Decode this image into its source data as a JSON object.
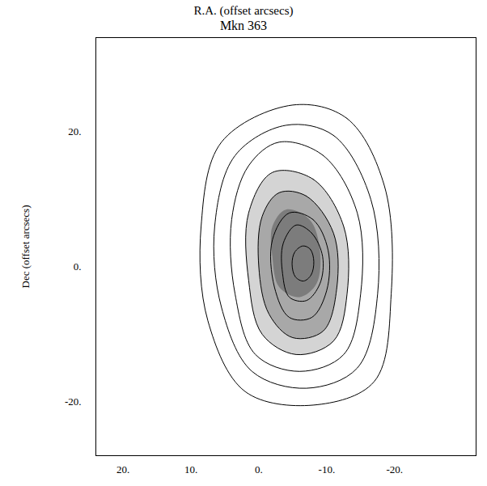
{
  "chart_data": {
    "type": "contour",
    "title": "Mkn 363",
    "x_label": "R.A. (offset arcsecs)",
    "y_label": "Dec (offset arcsecs)",
    "xlim": [
      24,
      -32
    ],
    "ylim": [
      -28,
      34
    ],
    "xticks": [
      {
        "value": 20,
        "label": "20."
      },
      {
        "value": 10,
        "label": "10."
      },
      {
        "value": 0,
        "label": "0."
      },
      {
        "value": -10,
        "label": "-10."
      },
      {
        "value": -20,
        "label": "-20."
      }
    ],
    "yticks": [
      {
        "value": 20,
        "label": "20."
      },
      {
        "value": 0,
        "label": "0."
      },
      {
        "value": -20,
        "label": "-20."
      }
    ],
    "color": "#000000",
    "shading": [
      {
        "color": "#d4d4d4",
        "points": [
          [
            -2.0,
            14.0
          ],
          [
            -8.0,
            13.0
          ],
          [
            -12.5,
            6.0
          ],
          [
            -13.0,
            -4.0
          ],
          [
            -11.0,
            -11.0
          ],
          [
            -5.5,
            -13.0
          ],
          [
            -0.5,
            -10.0
          ],
          [
            1.5,
            -2.0
          ],
          [
            1.5,
            8.0
          ]
        ]
      },
      {
        "color": "#a8a8a8",
        "points": [
          [
            -3.0,
            11.0
          ],
          [
            -7.0,
            10.5
          ],
          [
            -11.0,
            5.0
          ],
          [
            -11.5,
            -3.0
          ],
          [
            -9.5,
            -9.5
          ],
          [
            -5.0,
            -10.5
          ],
          [
            -1.5,
            -7.0
          ],
          [
            0.0,
            0.0
          ],
          [
            -0.5,
            7.5
          ]
        ]
      },
      {
        "color": "#7c7c7c",
        "points": [
          [
            -4.0,
            8.5
          ],
          [
            -7.5,
            7.0
          ],
          [
            -9.0,
            2.5
          ],
          [
            -8.5,
            -2.5
          ],
          [
            -6.0,
            -4.5
          ],
          [
            -3.0,
            -3.0
          ],
          [
            -2.0,
            1.5
          ],
          [
            -2.0,
            6.0
          ]
        ]
      }
    ],
    "contours": [
      [
        [
          -6.5,
          3.1
        ],
        [
          -7.6,
          2.6
        ],
        [
          -8.1,
          0.8
        ],
        [
          -7.7,
          -1.2
        ],
        [
          -6.6,
          -2.1
        ],
        [
          -5.4,
          -1.5
        ],
        [
          -4.9,
          0.4
        ],
        [
          -5.3,
          2.2
        ]
      ],
      [
        [
          -5.5,
          6.2
        ],
        [
          -7.8,
          5.0
        ],
        [
          -9.4,
          1.5
        ],
        [
          -9.0,
          -2.5
        ],
        [
          -7.0,
          -5.0
        ],
        [
          -4.5,
          -4.5
        ],
        [
          -3.5,
          -1.0
        ],
        [
          -3.6,
          3.5
        ]
      ],
      [
        [
          -4.5,
          8.0
        ],
        [
          -8.0,
          7.0
        ],
        [
          -10.2,
          2.5
        ],
        [
          -10.0,
          -3.5
        ],
        [
          -7.8,
          -7.5
        ],
        [
          -4.5,
          -7.5
        ],
        [
          -2.3,
          -3.0
        ],
        [
          -2.0,
          4.0
        ]
      ],
      [
        [
          -3.0,
          11.0
        ],
        [
          -7.0,
          10.5
        ],
        [
          -11.0,
          5.0
        ],
        [
          -11.5,
          -3.0
        ],
        [
          -9.5,
          -9.5
        ],
        [
          -5.0,
          -10.5
        ],
        [
          -1.5,
          -7.0
        ],
        [
          0.0,
          0.0
        ],
        [
          -0.5,
          7.5
        ]
      ],
      [
        [
          -2.0,
          14.0
        ],
        [
          -8.0,
          13.0
        ],
        [
          -12.5,
          6.0
        ],
        [
          -13.0,
          -4.0
        ],
        [
          -11.0,
          -11.0
        ],
        [
          -5.5,
          -13.0
        ],
        [
          -0.5,
          -10.0
        ],
        [
          1.5,
          -2.0
        ],
        [
          1.5,
          8.0
        ]
      ],
      [
        [
          -3.0,
          18.5
        ],
        [
          -9.5,
          16.5
        ],
        [
          -14.5,
          8.0
        ],
        [
          -15.0,
          -4.0
        ],
        [
          -12.5,
          -13.0
        ],
        [
          -6.0,
          -15.5
        ],
        [
          0.5,
          -13.0
        ],
        [
          3.5,
          -4.0
        ],
        [
          4.0,
          7.0
        ],
        [
          1.5,
          15.0
        ]
      ],
      [
        [
          -4.0,
          21.0
        ],
        [
          -11.0,
          19.5
        ],
        [
          -16.5,
          10.0
        ],
        [
          -17.5,
          -4.0
        ],
        [
          -14.5,
          -15.0
        ],
        [
          -7.0,
          -18.0
        ],
        [
          1.0,
          -15.5
        ],
        [
          5.5,
          -6.0
        ],
        [
          6.5,
          6.0
        ],
        [
          3.5,
          16.5
        ]
      ],
      [
        [
          -5.0,
          24.0
        ],
        [
          -13.0,
          22.0
        ],
        [
          -18.5,
          12.0
        ],
        [
          -19.5,
          -4.0
        ],
        [
          -17.0,
          -17.0
        ],
        [
          -8.0,
          -20.5
        ],
        [
          2.0,
          -18.5
        ],
        [
          7.5,
          -8.0
        ],
        [
          8.5,
          6.0
        ],
        [
          5.5,
          18.5
        ]
      ]
    ]
  }
}
